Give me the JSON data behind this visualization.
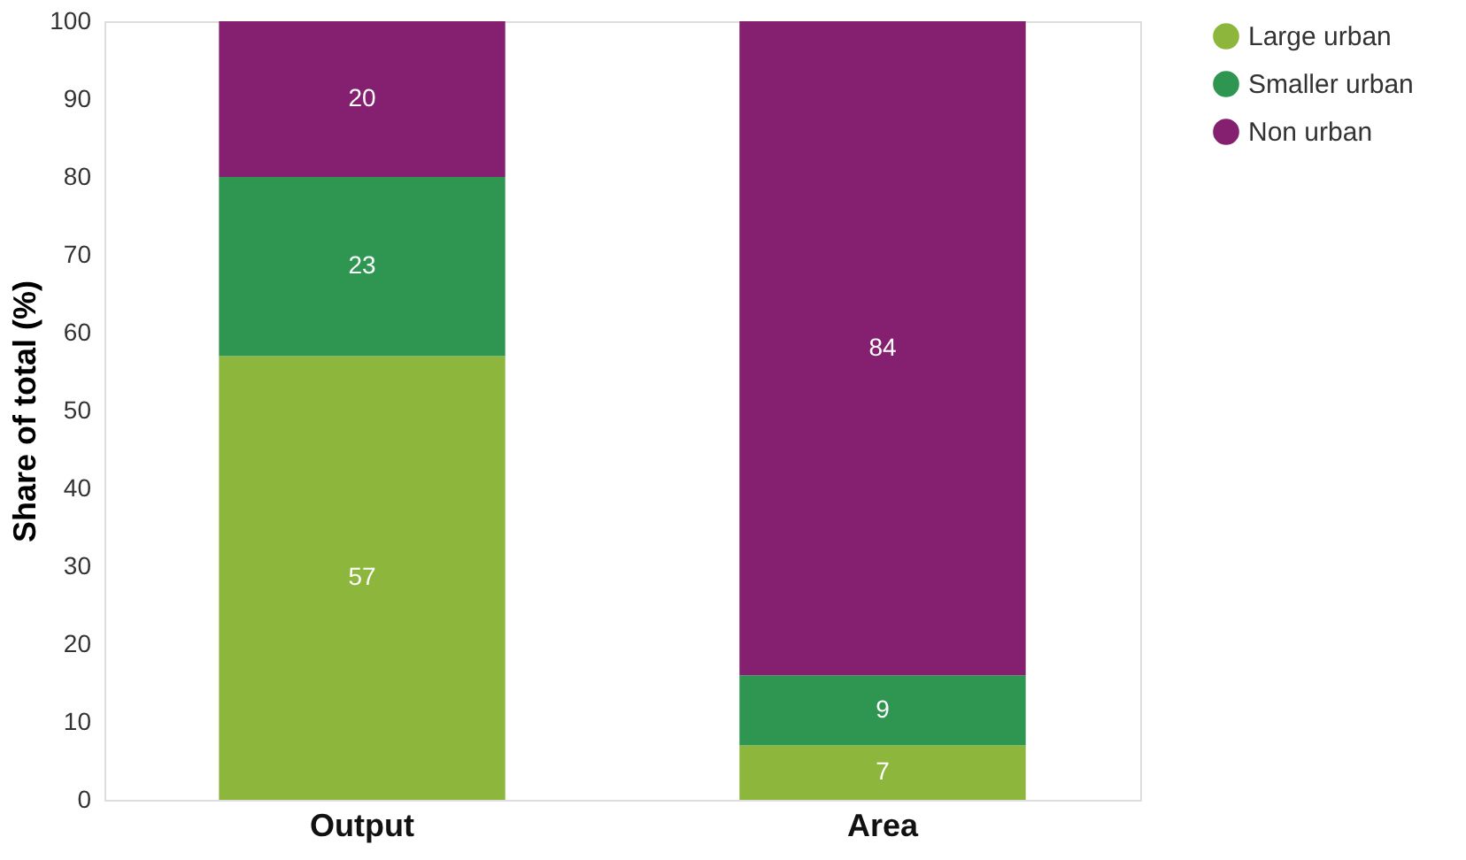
{
  "chart_data": {
    "type": "bar",
    "stacked": true,
    "ylabel": "Share of total (%)",
    "categories": [
      "Output",
      "Area"
    ],
    "series": [
      {
        "name": "Large urban",
        "color": "#8db63c",
        "values": [
          57,
          7
        ]
      },
      {
        "name": "Smaller urban",
        "color": "#2e9650",
        "values": [
          23,
          9
        ]
      },
      {
        "name": "Non urban",
        "color": "#84206f",
        "values": [
          20,
          84
        ]
      }
    ],
    "ylim": [
      0,
      100
    ],
    "yticks": [
      0,
      10,
      20,
      30,
      40,
      50,
      60,
      70,
      80,
      90,
      100
    ],
    "data_labels": true,
    "legend": "right",
    "grid": false
  }
}
